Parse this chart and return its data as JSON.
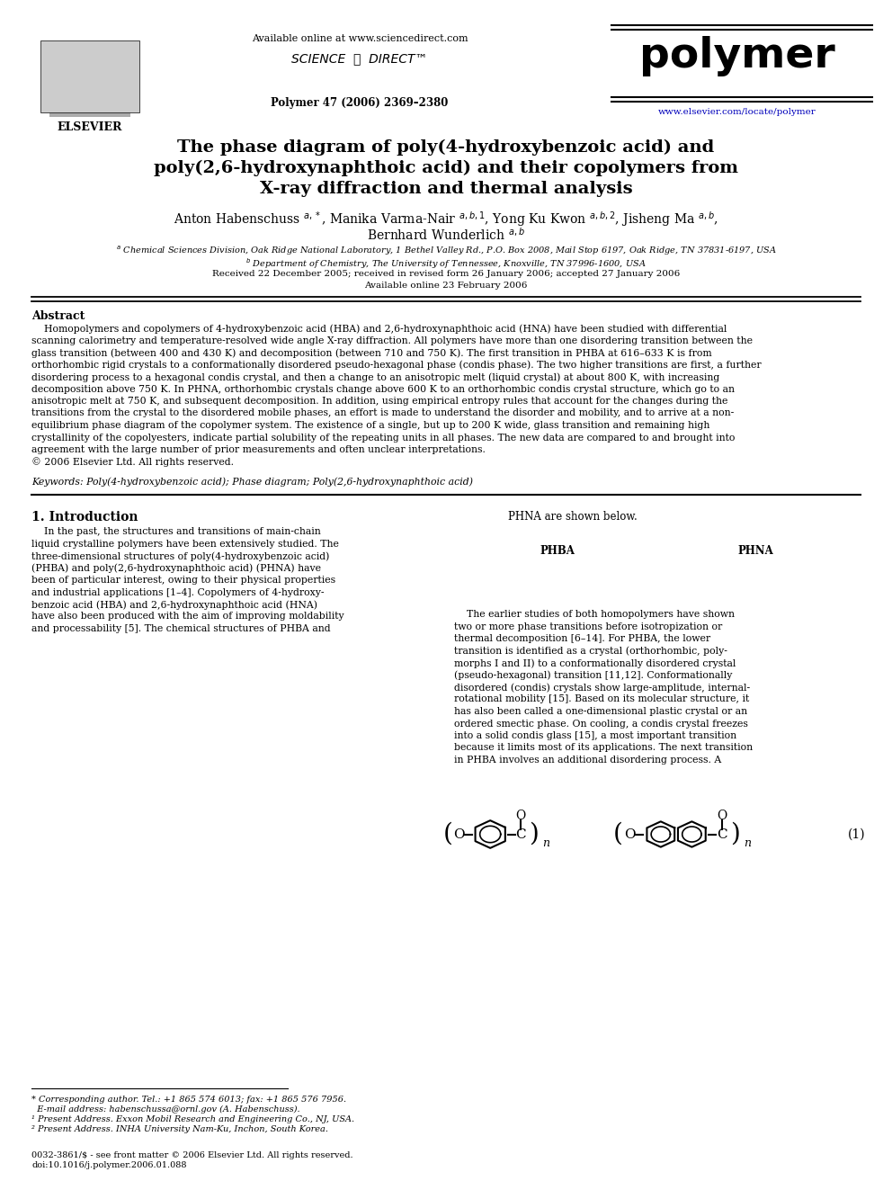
{
  "title_line1": "The phase diagram of poly(4-hydroxybenzoic acid) and",
  "title_line2": "poly(2,6-hydroxynaphthoic acid) and their copolymers from",
  "title_line3": "X-ray diffraction and thermal analysis",
  "journal_ref": "Polymer 47 (2006) 2369–2380",
  "available_online": "Available online at www.sciencedirect.com",
  "polymer_journal": "polymer",
  "elsevier_url": "www.elsevier.com/locate/polymer",
  "abstract_title": "Abstract",
  "keywords": "Keywords: Poly(4-hydroxybenzoic acid); Phase diagram; Poly(2,6-hydroxynaphthoic acid)",
  "section1_title": "1. Introduction",
  "received": "Received 22 December 2005; received in revised form 26 January 2006; accepted 27 January 2006",
  "available": "Available online 23 February 2006",
  "copyright_footer": "0032-3861/$ - see front matter © 2006 Elsevier Ltd. All rights reserved.\ndoi:10.1016/j.polymer.2006.01.088",
  "bg_color": "#ffffff",
  "text_color": "#000000",
  "blue_color": "#0000bb"
}
